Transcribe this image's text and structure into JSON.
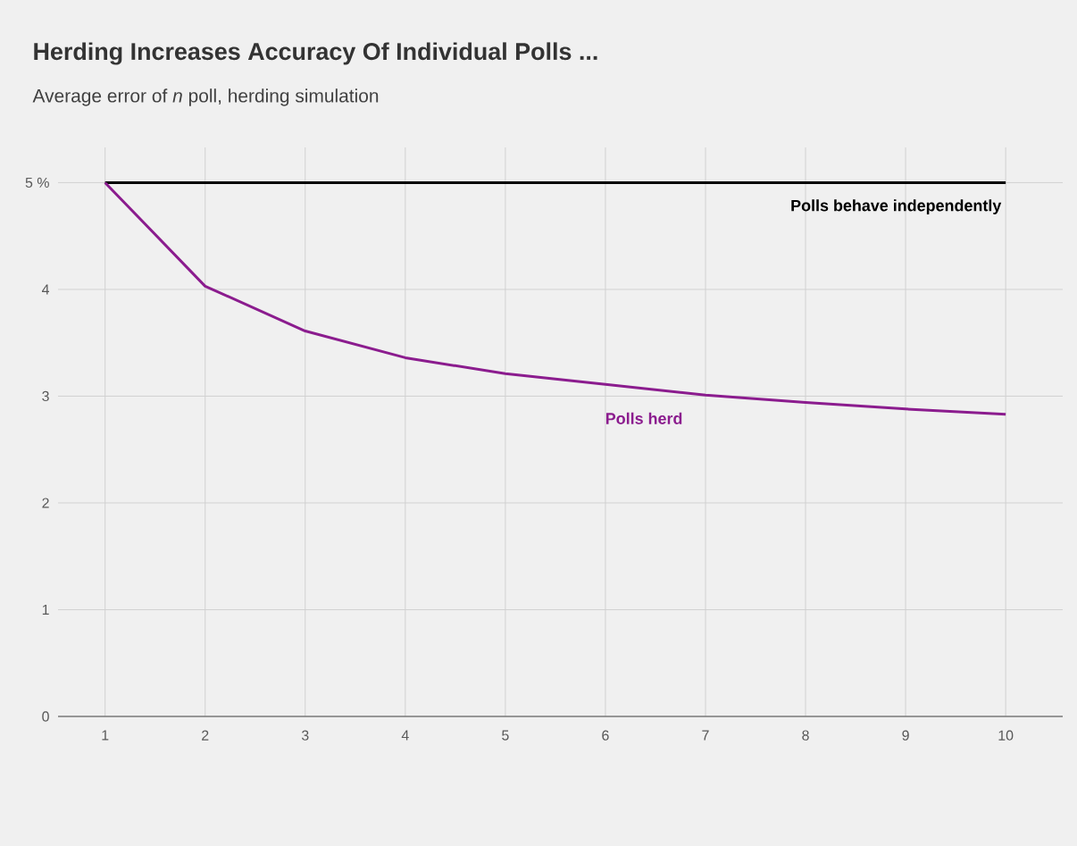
{
  "chart_data": {
    "type": "line",
    "title": "Herding Increases Accuracy Of Individual Polls ...",
    "subtitle": "Average error of *n* poll, herding simulation",
    "x": [
      1,
      2,
      3,
      4,
      5,
      6,
      7,
      8,
      9,
      10
    ],
    "xlim": [
      0.53,
      10.57
    ],
    "xticks": [
      1,
      2,
      3,
      4,
      5,
      6,
      7,
      8,
      9,
      10
    ],
    "ylim": [
      0,
      5.33
    ],
    "yticks": [
      0,
      1,
      2,
      3,
      4,
      {
        "value": 5,
        "label": "5 %"
      }
    ],
    "grid": true,
    "series": [
      {
        "name": "Polls behave independently",
        "color": "#000000",
        "values": [
          5,
          5,
          5,
          5,
          5,
          5,
          5,
          5,
          5,
          5
        ]
      },
      {
        "name": "Polls herd",
        "color": "#8b1c8e",
        "values": [
          5,
          4.03,
          3.61,
          3.36,
          3.21,
          3.11,
          3.01,
          2.94,
          2.88,
          2.83
        ]
      }
    ]
  }
}
